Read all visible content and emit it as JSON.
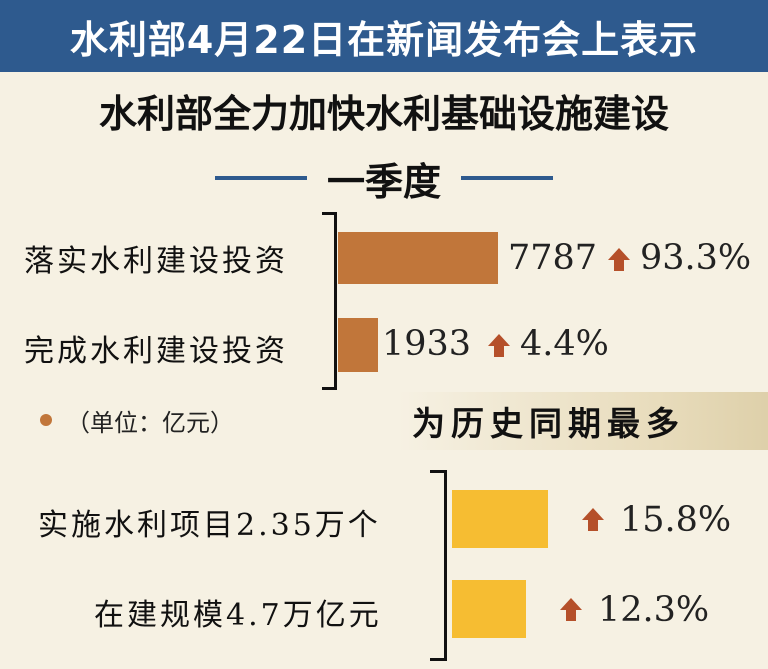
{
  "banner": "水利部4月22日在新闻发布会上表示",
  "main_title": "水利部全力加快水利基础设施建设",
  "section_title": "一季度",
  "unit_note": "（单位：亿元）",
  "record_note": "为历史同期最多",
  "colors": {
    "banner": "#2e5a8e",
    "investment_bar": "#c1763a",
    "project_bar": "#f6bd32",
    "arrow": "#b5502a"
  },
  "chart_data": [
    {
      "type": "bar",
      "orientation": "horizontal",
      "unit": "亿元",
      "categories": [
        "落实水利建设投资",
        "完成水利建设投资"
      ],
      "values": [
        7787,
        1933
      ],
      "value_labels": [
        "7787",
        "1933"
      ],
      "growth": [
        "93.3%",
        "4.4%"
      ],
      "growth_icon": "up-arrow-icon"
    },
    {
      "type": "bar",
      "orientation": "horizontal",
      "categories": [
        "实施水利项目2.35万个",
        "在建规模4.7万亿元"
      ],
      "growth": [
        "15.8%",
        "12.3%"
      ],
      "growth_icon": "up-arrow-icon"
    }
  ]
}
